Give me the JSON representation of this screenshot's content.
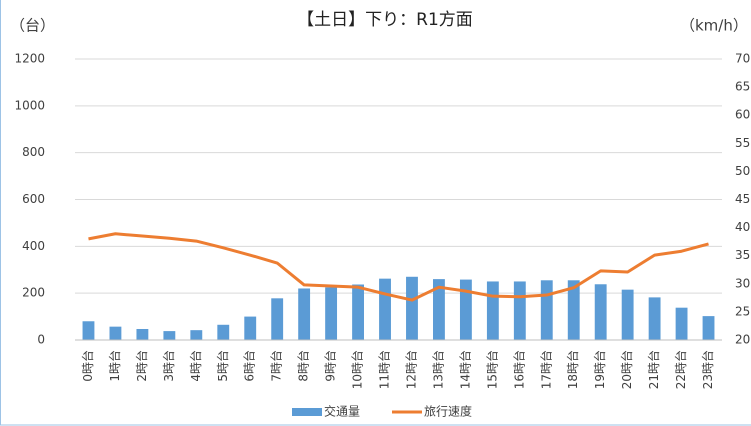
{
  "chart_data": {
    "type": "bar_line",
    "title": "【土日】下り：R1方面",
    "y_label": "（台）",
    "y2_label": "（km/h）",
    "categories": [
      "0時台",
      "1時台",
      "2時台",
      "3時台",
      "4時台",
      "5時台",
      "6時台",
      "7時台",
      "8時台",
      "9時台",
      "10時台",
      "11時台",
      "12時台",
      "13時台",
      "14時台",
      "15時台",
      "16時台",
      "17時台",
      "18時台",
      "19時台",
      "20時台",
      "21時台",
      "22時台",
      "23時台"
    ],
    "series": [
      {
        "name": "交通量",
        "type": "bar",
        "color": "#5b9bd5",
        "values": [
          80,
          57,
          47,
          38,
          42,
          65,
          100,
          178,
          220,
          225,
          237,
          262,
          270,
          260,
          258,
          250,
          250,
          255,
          255,
          238,
          215,
          182,
          138,
          102
        ]
      },
      {
        "name": "旅行速度",
        "type": "line",
        "axis": "y2",
        "color": "#ed7d31",
        "values": [
          38.0,
          38.9,
          38.5,
          38.1,
          37.6,
          36.4,
          35.1,
          33.7,
          29.8,
          29.6,
          29.4,
          28.2,
          27.1,
          29.4,
          28.7,
          27.8,
          27.7,
          28.0,
          29.3,
          32.3,
          32.1,
          35.1,
          35.8,
          37.1
        ]
      }
    ],
    "ylim": [
      0,
      1200
    ],
    "yticks": [
      0,
      200,
      400,
      600,
      800,
      1000,
      1200
    ],
    "y2lim": [
      20,
      70
    ],
    "y2ticks": [
      20,
      25,
      30,
      35,
      40,
      45,
      50,
      55,
      60,
      65,
      70
    ],
    "grid": true,
    "legend": "bottom"
  }
}
